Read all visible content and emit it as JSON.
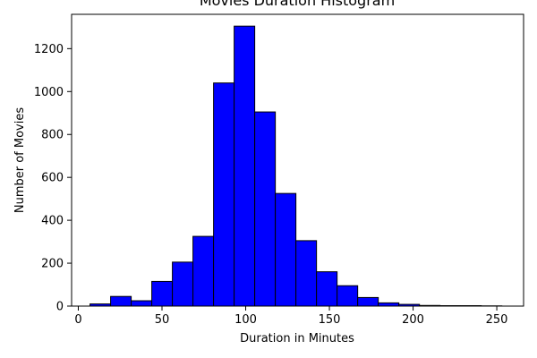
{
  "chart_data": {
    "type": "bar",
    "title": "Movies Duration Histogram",
    "xlabel": "Duration in Minutes",
    "ylabel": "Number of Movies",
    "xlim": [
      -4,
      266
    ],
    "ylim": [
      0,
      1360
    ],
    "x_ticks": [
      0,
      50,
      100,
      150,
      200,
      250
    ],
    "y_ticks": [
      0,
      200,
      400,
      600,
      800,
      1000,
      1200
    ],
    "bins": [
      {
        "start": 7.0,
        "end": 19.3,
        "value": 10
      },
      {
        "start": 19.3,
        "end": 31.6,
        "value": 45
      },
      {
        "start": 31.6,
        "end": 43.9,
        "value": 25
      },
      {
        "start": 43.9,
        "end": 56.2,
        "value": 115
      },
      {
        "start": 56.2,
        "end": 68.5,
        "value": 205
      },
      {
        "start": 68.5,
        "end": 80.8,
        "value": 325
      },
      {
        "start": 80.8,
        "end": 93.1,
        "value": 1040
      },
      {
        "start": 93.1,
        "end": 105.4,
        "value": 1305
      },
      {
        "start": 105.4,
        "end": 117.7,
        "value": 905
      },
      {
        "start": 117.7,
        "end": 130.0,
        "value": 525
      },
      {
        "start": 130.0,
        "end": 142.3,
        "value": 305
      },
      {
        "start": 142.3,
        "end": 154.6,
        "value": 160
      },
      {
        "start": 154.6,
        "end": 166.9,
        "value": 95
      },
      {
        "start": 166.9,
        "end": 179.2,
        "value": 40
      },
      {
        "start": 179.2,
        "end": 191.5,
        "value": 15
      },
      {
        "start": 191.5,
        "end": 203.8,
        "value": 8
      },
      {
        "start": 203.8,
        "end": 216.1,
        "value": 3
      },
      {
        "start": 216.1,
        "end": 228.4,
        "value": 2
      },
      {
        "start": 228.4,
        "end": 240.7,
        "value": 2
      },
      {
        "start": 240.7,
        "end": 253.0,
        "value": 1
      }
    ],
    "bar_color": "#0000ff",
    "edge_color": "#000000",
    "grid": false,
    "legend": "none"
  }
}
